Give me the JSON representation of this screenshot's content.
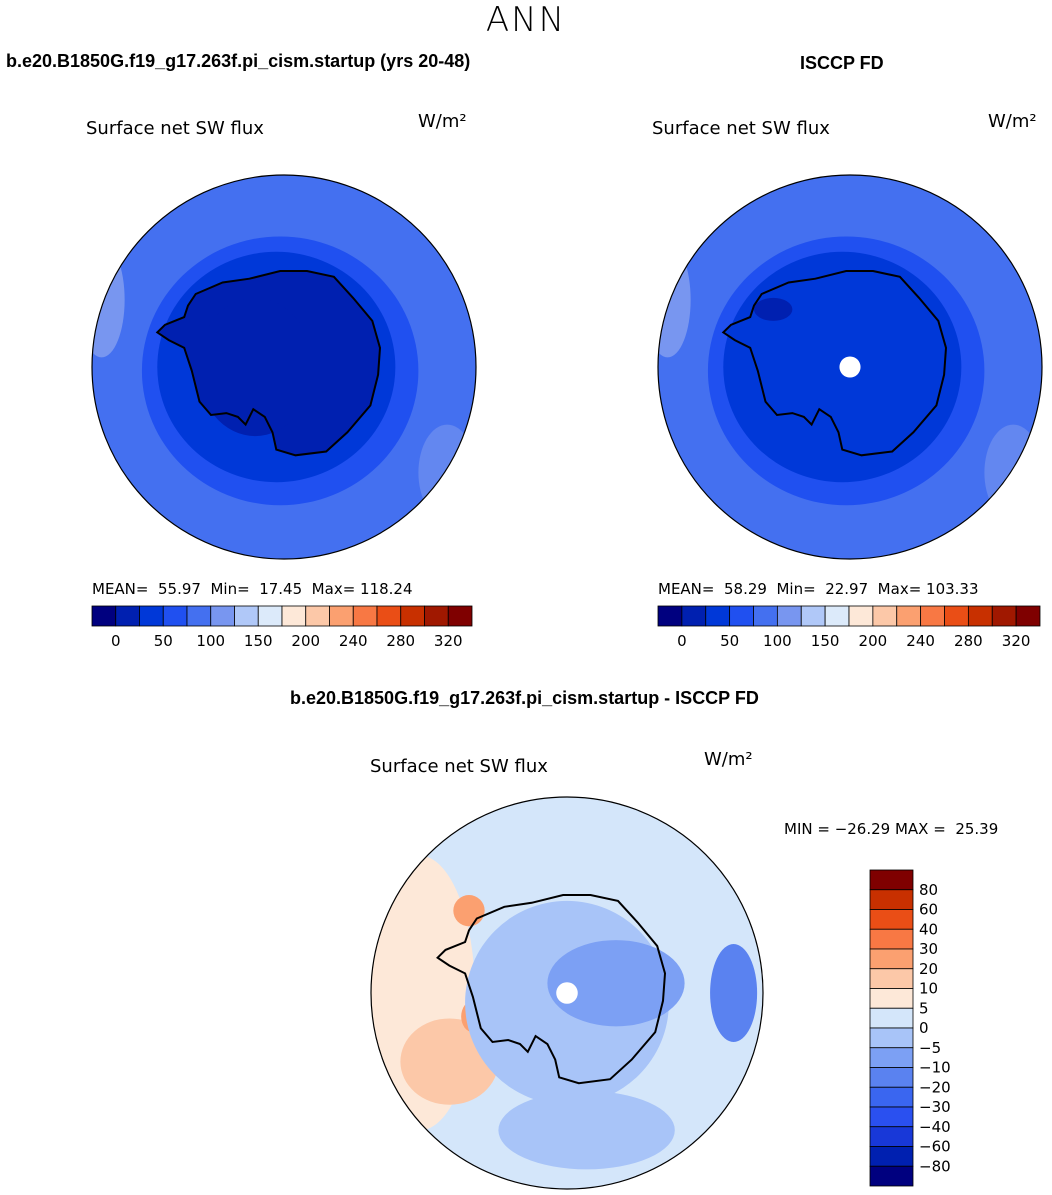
{
  "page_title": "ANN",
  "colors": {
    "scale_top": [
      "#00007f",
      "#0020b0",
      "#0038d8",
      "#2050f0",
      "#4470f0",
      "#7896f0",
      "#b0c8f8",
      "#dceafa",
      "#fde8d8",
      "#fcc8a8",
      "#fba070",
      "#f87844",
      "#ea4e16",
      "#c83000",
      "#a01800",
      "#7f0000"
    ],
    "scale_diff": [
      "#00007f",
      "#0020b0",
      "#1838d8",
      "#2a50f0",
      "#3a66f0",
      "#5a82f0",
      "#7ca0f4",
      "#a8c4f8",
      "#d4e6fa",
      "#fde8d8",
      "#fcc8a8",
      "#fba070",
      "#f87844",
      "#ea4e16",
      "#c83000",
      "#7f0000"
    ],
    "ocean_outer": "#4470f0",
    "land": "#0038d8"
  },
  "chart_data": [
    {
      "type": "heatmap",
      "projection": "polar-stereographic-south",
      "title": "b.e20.B1850G.f19_g17.263f.pi_cism.startup (yrs 20-48)",
      "variable": "Surface net SW flux",
      "units": "W/m²",
      "stats": {
        "mean": "55.97",
        "min": "17.45",
        "max": "118.24"
      },
      "stats_text": "MEAN=  55.97  Min=  17.45  Max= 118.24",
      "colorbar_levels": [
        0,
        25,
        50,
        75,
        100,
        125,
        150,
        175,
        200,
        220,
        240,
        260,
        280,
        300,
        320
      ],
      "colorbar_ticks": [
        "0",
        "50",
        "100",
        "150",
        "200",
        "240",
        "280",
        "320"
      ]
    },
    {
      "type": "heatmap",
      "projection": "polar-stereographic-south",
      "title": "ISCCP FD",
      "variable": "Surface net SW flux",
      "units": "W/m²",
      "stats": {
        "mean": "58.29",
        "min": "22.97",
        "max": "103.33"
      },
      "stats_text": "MEAN=  58.29  Min=  22.97  Max= 103.33",
      "colorbar_levels": [
        0,
        25,
        50,
        75,
        100,
        125,
        150,
        175,
        200,
        220,
        240,
        260,
        280,
        300,
        320
      ],
      "colorbar_ticks": [
        "0",
        "50",
        "100",
        "150",
        "200",
        "240",
        "280",
        "320"
      ]
    },
    {
      "type": "heatmap",
      "projection": "polar-stereographic-south",
      "title": "b.e20.B1850G.f19_g17.263f.pi_cism.startup - ISCCP FD",
      "variable": "Surface net SW flux",
      "units": "W/m²",
      "stats": {
        "min": "-26.29",
        "max": "25.39"
      },
      "stats_text": "MIN = −26.29 MAX =  25.39",
      "colorbar_levels": [
        -80,
        -60,
        -40,
        -30,
        -20,
        -10,
        -5,
        0,
        5,
        10,
        20,
        30,
        40,
        60,
        80
      ],
      "colorbar_ticks": [
        "80",
        "60",
        "40",
        "30",
        "20",
        "10",
        "5",
        "0",
        "−5",
        "−10",
        "−20",
        "−30",
        "−40",
        "−60",
        "−80"
      ]
    }
  ]
}
